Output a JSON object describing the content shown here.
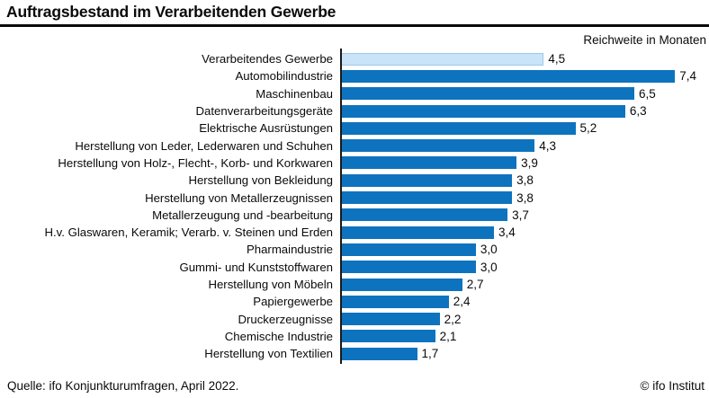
{
  "title": "Auftragsbestand im Verarbeitenden Gewerbe",
  "axis_caption": "Reichweite in Monaten",
  "footer": {
    "source": "Quelle: ifo Konjunkturumfragen, April 2022.",
    "copyright": "© ifo Institut"
  },
  "colors": {
    "bar": "#0e73be",
    "highlight_bar": "#c9e3f8",
    "highlight_border": "#9ccae9",
    "axis": "#1a1a1a",
    "title": "#0a0a0a"
  },
  "chart_data": {
    "type": "bar",
    "orientation": "horizontal",
    "title": "Auftragsbestand im Verarbeitenden Gewerbe",
    "xlabel": "Reichweite in Monaten",
    "xlim": [
      0,
      8.2
    ],
    "grid": false,
    "legend": "none",
    "highlighted_index": 0,
    "categories": [
      "Verarbeitendes Gewerbe",
      "Automobilindustrie",
      "Maschinenbau",
      "Datenverarbeitungsgeräte",
      "Elektrische Ausrüstungen",
      "Herstellung von Leder, Lederwaren und Schuhen",
      "Herstellung von Holz-, Flecht-, Korb- und Korkwaren",
      "Herstellung von Bekleidung",
      "Herstellung von Metallerzeugnissen",
      "Metallerzeugung und -bearbeitung",
      "H.v. Glaswaren, Keramik; Verarb. v. Steinen und Erden",
      "Pharmaindustrie",
      "Gummi- und Kunststoffwaren",
      "Herstellung von Möbeln",
      "Papiergewerbe",
      "Druckerzeugnisse",
      "Chemische Industrie",
      "Herstellung von Textilien"
    ],
    "values": [
      4.5,
      7.4,
      6.5,
      6.3,
      5.2,
      4.3,
      3.9,
      3.8,
      3.8,
      3.7,
      3.4,
      3.0,
      3.0,
      2.7,
      2.4,
      2.2,
      2.1,
      1.7
    ],
    "value_labels": [
      "4,5",
      "7,4",
      "6,5",
      "6,3",
      "5,2",
      "4,3",
      "3,9",
      "3,8",
      "3,8",
      "3,7",
      "3,4",
      "3,0",
      "3,0",
      "2,7",
      "2,4",
      "2,2",
      "2,1",
      "1,7"
    ]
  }
}
